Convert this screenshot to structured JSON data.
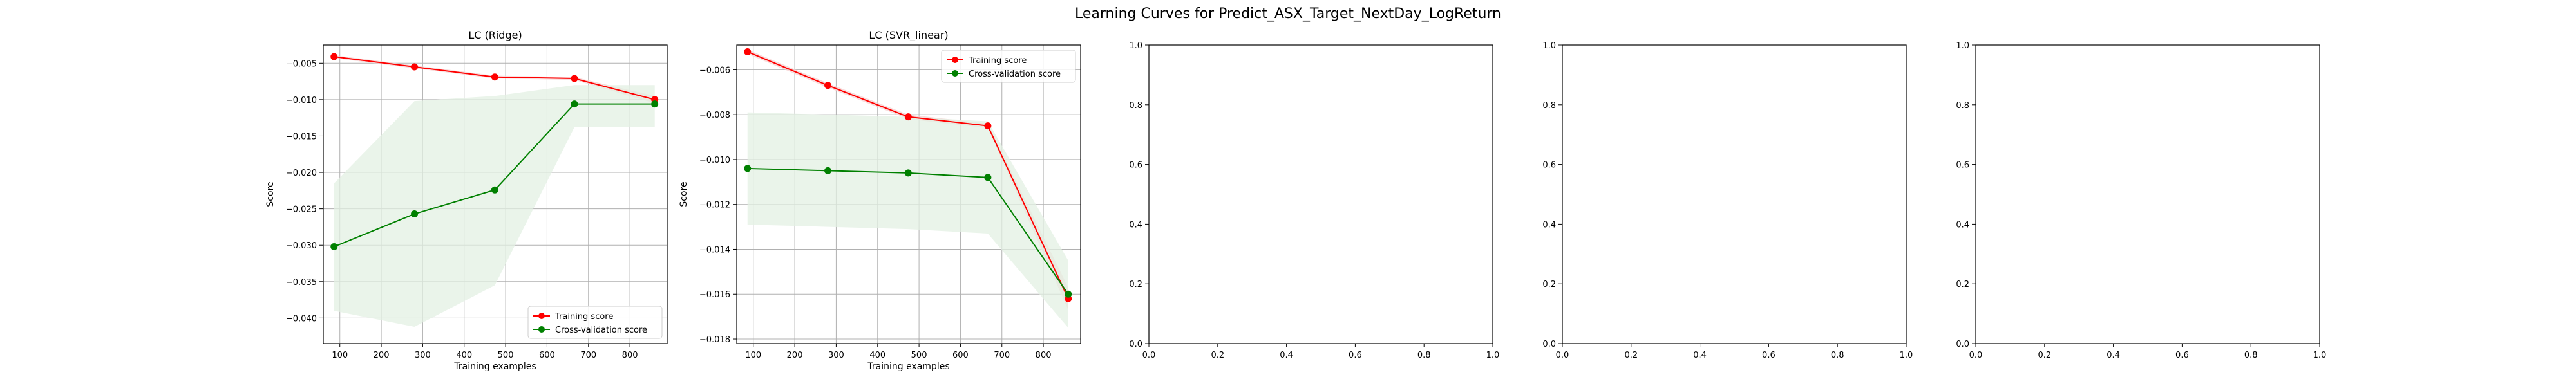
{
  "figure": {
    "suptitle": "Learning Curves for Predict_ASX_Target_NextDay_LogReturn"
  },
  "colors": {
    "training": "#ff0000",
    "cv": "#008000",
    "train_band": "#f5d0d0",
    "cv_band": "#e3f0e3",
    "grid": "#b0b0b0",
    "axis": "#000000"
  },
  "chart_data": [
    {
      "type": "line",
      "title": "LC (Ridge)",
      "xlabel": "Training examples",
      "ylabel": "Score",
      "grid": true,
      "legend_loc": "lower-right",
      "xlim": [
        60,
        890
      ],
      "ylim": [
        -0.0435,
        -0.0025
      ],
      "xticks": [
        100,
        200,
        300,
        400,
        500,
        600,
        700,
        800
      ],
      "yticks": [
        -0.005,
        -0.01,
        -0.015,
        -0.02,
        -0.025,
        -0.03,
        -0.035,
        -0.04
      ],
      "ytick_labels": [
        "−0.005",
        "−0.010",
        "−0.015",
        "−0.020",
        "−0.025",
        "−0.030",
        "−0.035",
        "−0.040"
      ],
      "series": [
        {
          "name": "Training score",
          "color": "#ff0000",
          "x": [
            86,
            280,
            474,
            666,
            860
          ],
          "y": [
            -0.0041,
            -0.0055,
            -0.0069,
            -0.0071,
            -0.01
          ],
          "band_low": [
            -0.0043,
            -0.0057,
            -0.0071,
            -0.0073,
            -0.0105
          ],
          "band_high": [
            -0.0039,
            -0.0053,
            -0.0067,
            -0.0069,
            -0.0095
          ]
        },
        {
          "name": "Cross-validation score",
          "color": "#008000",
          "x": [
            86,
            280,
            474,
            666,
            860
          ],
          "y": [
            -0.0302,
            -0.0257,
            -0.0224,
            -0.0106,
            -0.0106
          ],
          "band_low": [
            -0.039,
            -0.0412,
            -0.0355,
            -0.0138,
            -0.0138
          ],
          "band_high": [
            -0.0215,
            -0.0102,
            -0.0095,
            -0.008,
            -0.008
          ]
        }
      ]
    },
    {
      "type": "line",
      "title": "LC (SVR_linear)",
      "xlabel": "Training examples",
      "ylabel": "Score",
      "grid": true,
      "legend_loc": "upper-right",
      "xlim": [
        60,
        890
      ],
      "ylim": [
        -0.0182,
        -0.0049
      ],
      "xticks": [
        100,
        200,
        300,
        400,
        500,
        600,
        700,
        800
      ],
      "yticks": [
        -0.006,
        -0.008,
        -0.01,
        -0.012,
        -0.014,
        -0.016,
        -0.018
      ],
      "ytick_labels": [
        "−0.006",
        "−0.008",
        "−0.010",
        "−0.012",
        "−0.014",
        "−0.016",
        "−0.018"
      ],
      "series": [
        {
          "name": "Training score",
          "color": "#ff0000",
          "x": [
            86,
            280,
            474,
            666,
            860
          ],
          "y": [
            -0.0052,
            -0.0067,
            -0.0081,
            -0.0085,
            -0.0162
          ],
          "band_low": [
            -0.0053,
            -0.0068,
            -0.0082,
            -0.0086,
            -0.0167
          ],
          "band_high": [
            -0.0051,
            -0.0066,
            -0.008,
            -0.0084,
            -0.0157
          ]
        },
        {
          "name": "Cross-validation score",
          "color": "#008000",
          "x": [
            86,
            280,
            474,
            666,
            860
          ],
          "y": [
            -0.0104,
            -0.0105,
            -0.0106,
            -0.0108,
            -0.016
          ],
          "band_low": [
            -0.0129,
            -0.013,
            -0.0131,
            -0.0133,
            -0.0175
          ],
          "band_high": [
            -0.0079,
            -0.008,
            -0.0081,
            -0.0083,
            -0.0145
          ]
        }
      ]
    },
    {
      "type": "line",
      "title": "",
      "empty": true,
      "xlim": [
        0,
        1
      ],
      "ylim": [
        0,
        1
      ],
      "xticks": [
        0,
        0.2,
        0.4,
        0.6,
        0.8,
        1.0
      ],
      "yticks": [
        0,
        0.2,
        0.4,
        0.6,
        0.8,
        1.0
      ],
      "xtick_labels": [
        "0.0",
        "0.2",
        "0.4",
        "0.6",
        "0.8",
        "1.0"
      ],
      "ytick_labels": [
        "0.0",
        "0.2",
        "0.4",
        "0.6",
        "0.8",
        "1.0"
      ],
      "series": []
    },
    {
      "type": "line",
      "title": "",
      "empty": true,
      "xlim": [
        0,
        1
      ],
      "ylim": [
        0,
        1
      ],
      "xticks": [
        0,
        0.2,
        0.4,
        0.6,
        0.8,
        1.0
      ],
      "yticks": [
        0,
        0.2,
        0.4,
        0.6,
        0.8,
        1.0
      ],
      "xtick_labels": [
        "0.0",
        "0.2",
        "0.4",
        "0.6",
        "0.8",
        "1.0"
      ],
      "ytick_labels": [
        "0.0",
        "0.2",
        "0.4",
        "0.6",
        "0.8",
        "1.0"
      ],
      "series": []
    },
    {
      "type": "line",
      "title": "",
      "empty": true,
      "xlim": [
        0,
        1
      ],
      "ylim": [
        0,
        1
      ],
      "xticks": [
        0,
        0.2,
        0.4,
        0.6,
        0.8,
        1.0
      ],
      "yticks": [
        0,
        0.2,
        0.4,
        0.6,
        0.8,
        1.0
      ],
      "xtick_labels": [
        "0.0",
        "0.2",
        "0.4",
        "0.6",
        "0.8",
        "1.0"
      ],
      "ytick_labels": [
        "0.0",
        "0.2",
        "0.4",
        "0.6",
        "0.8",
        "1.0"
      ],
      "series": []
    }
  ]
}
